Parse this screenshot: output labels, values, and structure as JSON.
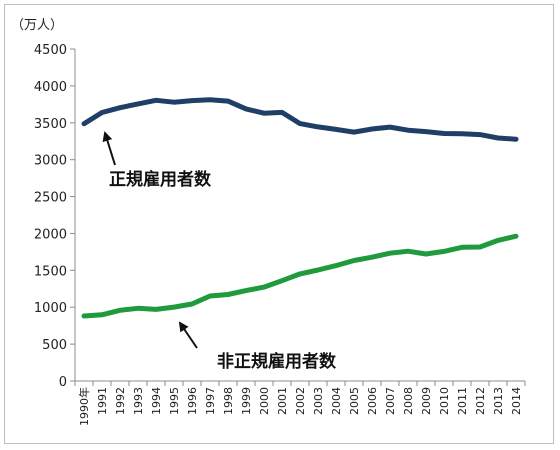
{
  "chart_data": {
    "type": "line",
    "unit_label": "（万人）",
    "x": [
      "1990年",
      "1991",
      "1992",
      "1993",
      "1994",
      "1995",
      "1996",
      "1997",
      "1998",
      "1999",
      "2000",
      "2001",
      "2002",
      "2003",
      "2004",
      "2005",
      "2006",
      "2007",
      "2008",
      "2009",
      "2010",
      "2011",
      "2012",
      "2013",
      "2014"
    ],
    "ylim": [
      0,
      4500
    ],
    "yticks": [
      "0",
      "500",
      "1000",
      "1500",
      "2000",
      "2500",
      "3000",
      "3500",
      "4000",
      "4500"
    ],
    "grid": false,
    "series": [
      {
        "name": "正規雇用者数",
        "color": "#1f3f66",
        "values": [
          3488,
          3639,
          3705,
          3756,
          3805,
          3779,
          3800,
          3812,
          3794,
          3688,
          3630,
          3640,
          3489,
          3444,
          3410,
          3374,
          3415,
          3441,
          3399,
          3380,
          3355,
          3352,
          3340,
          3294,
          3278
        ]
      },
      {
        "name": "非正規雇用者数",
        "color": "#1f9a3c",
        "values": [
          881,
          897,
          958,
          986,
          971,
          1001,
          1043,
          1152,
          1173,
          1225,
          1273,
          1360,
          1451,
          1504,
          1564,
          1633,
          1678,
          1732,
          1760,
          1721,
          1756,
          1812,
          1816,
          1906,
          1962
        ]
      }
    ],
    "annotations": [
      {
        "text": "正規雇用者数",
        "series": 0
      },
      {
        "text": "非正規雇用者数",
        "series": 1
      }
    ]
  }
}
